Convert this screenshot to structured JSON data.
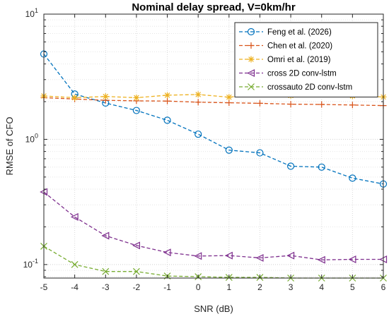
{
  "chart_data": {
    "type": "line",
    "title": "Nominal delay spread, V=0km/hr",
    "xlabel": "SNR (dB)",
    "ylabel": "RMSE of CFO",
    "x": [
      -5,
      -4,
      -3,
      -2,
      -1,
      0,
      1,
      2,
      3,
      4,
      5,
      6
    ],
    "xlim": [
      -5,
      6
    ],
    "ylim": [
      0.078,
      10
    ],
    "yscale": "log",
    "grid": true,
    "legend_position": "top-right",
    "series": [
      {
        "name": "Feng et al. (2026)",
        "color": "#0072BD",
        "marker": "circle",
        "values": [
          4.8,
          2.3,
          1.95,
          1.7,
          1.42,
          1.1,
          0.82,
          0.78,
          0.61,
          0.6,
          0.49,
          0.44
        ]
      },
      {
        "name": "Chen et al. (2020)",
        "color": "#D95319",
        "marker": "plus",
        "values": [
          2.15,
          2.1,
          2.05,
          2.03,
          2.02,
          1.98,
          1.96,
          1.94,
          1.91,
          1.9,
          1.88,
          1.86
        ]
      },
      {
        "name": "Omri et al. (2019)",
        "color": "#EDB120",
        "marker": "asterisk",
        "values": [
          2.22,
          2.15,
          2.2,
          2.15,
          2.25,
          2.28,
          2.17,
          2.3,
          2.24,
          2.3,
          2.22,
          2.18
        ]
      },
      {
        "name": "cross 2D conv-lstm",
        "color": "#7E2F8E",
        "marker": "triangle-left",
        "values": [
          0.38,
          0.24,
          0.17,
          0.142,
          0.125,
          0.117,
          0.118,
          0.113,
          0.118,
          0.109,
          0.11,
          0.11
        ]
      },
      {
        "name": "crossauto 2D conv-lstm",
        "color": "#77AC30",
        "marker": "x",
        "values": [
          0.14,
          0.1,
          0.088,
          0.088,
          0.081,
          0.08,
          0.079,
          0.079,
          0.078,
          0.078,
          0.078,
          0.078
        ]
      }
    ],
    "xticks": [
      "-5",
      "-4",
      "-3",
      "-2",
      "-1",
      "0",
      "1",
      "2",
      "3",
      "4",
      "5",
      "6"
    ],
    "yticks": [
      {
        "base": "10",
        "exp": "-1",
        "value": 0.1
      },
      {
        "base": "10",
        "exp": "0",
        "value": 1
      },
      {
        "base": "10",
        "exp": "1",
        "value": 10
      }
    ]
  }
}
